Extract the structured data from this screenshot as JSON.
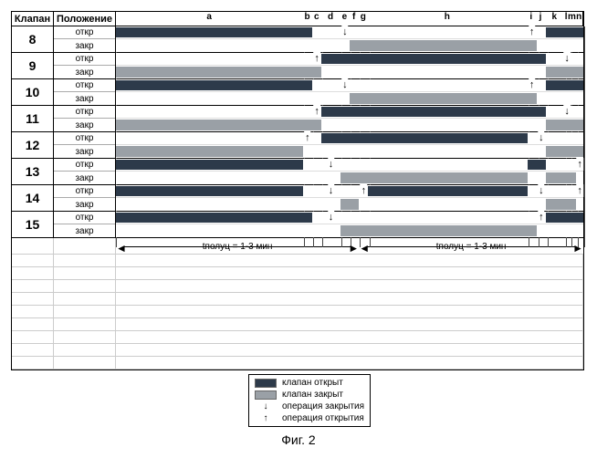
{
  "caption": "Фиг. 2",
  "header": {
    "valve": "Клапан",
    "state": "Положение"
  },
  "state_labels": {
    "open": "откр",
    "closed": "закр"
  },
  "cycle_label": "tполуц = 1-3 мин",
  "legend": {
    "open": "клапан открыт",
    "closed": "клапан закрыт",
    "close_op": "операция закрытия",
    "open_op": "операция открытия"
  },
  "colors": {
    "open": "#2d3a4a",
    "closed": "#9aa0a6",
    "grid": "#444444",
    "border": "#000000",
    "background": "#ffffff"
  },
  "phases": [
    {
      "id": "a",
      "start": 0,
      "end": 0.4
    },
    {
      "id": "b",
      "start": 0.4,
      "end": 0.42
    },
    {
      "id": "c",
      "start": 0.42,
      "end": 0.44
    },
    {
      "id": "d",
      "start": 0.44,
      "end": 0.48
    },
    {
      "id": "e",
      "start": 0.48,
      "end": 0.5
    },
    {
      "id": "f",
      "start": 0.5,
      "end": 0.52
    },
    {
      "id": "g",
      "start": 0.52,
      "end": 0.54
    },
    {
      "id": "h",
      "start": 0.54,
      "end": 0.88
    },
    {
      "id": "i",
      "start": 0.88,
      "end": 0.9
    },
    {
      "id": "j",
      "start": 0.9,
      "end": 0.92
    },
    {
      "id": "k",
      "start": 0.92,
      "end": 0.96
    },
    {
      "id": "l",
      "start": 0.96,
      "end": 0.97
    },
    {
      "id": "m",
      "start": 0.97,
      "end": 0.985
    },
    {
      "id": "n",
      "start": 0.985,
      "end": 1.0
    }
  ],
  "cycles": [
    {
      "start": 0.0,
      "end": 0.52
    },
    {
      "start": 0.52,
      "end": 1.0
    }
  ],
  "valves": [
    {
      "id": "8",
      "open": [
        {
          "s": 0,
          "e": 0.42,
          "t": "open"
        },
        {
          "s": 0.48,
          "e": 0.5,
          "t": "mark",
          "m": "↓"
        },
        {
          "s": 0.88,
          "e": 0.9,
          "t": "mark",
          "m": "↑"
        },
        {
          "s": 0.92,
          "e": 1,
          "t": "open"
        }
      ],
      "closed": [
        {
          "s": 0.5,
          "e": 0.9,
          "t": "closed"
        }
      ]
    },
    {
      "id": "9",
      "open": [
        {
          "s": 0.42,
          "e": 0.44,
          "t": "mark",
          "m": "↑"
        },
        {
          "s": 0.44,
          "e": 0.92,
          "t": "open"
        },
        {
          "s": 0.96,
          "e": 0.97,
          "t": "mark",
          "m": "↓"
        }
      ],
      "closed": [
        {
          "s": 0,
          "e": 0.44,
          "t": "closed"
        },
        {
          "s": 0.92,
          "e": 1,
          "t": "closed"
        }
      ]
    },
    {
      "id": "10",
      "open": [
        {
          "s": 0,
          "e": 0.42,
          "t": "open"
        },
        {
          "s": 0.48,
          "e": 0.5,
          "t": "mark",
          "m": "↓"
        },
        {
          "s": 0.88,
          "e": 0.9,
          "t": "mark",
          "m": "↑"
        },
        {
          "s": 0.92,
          "e": 1,
          "t": "open"
        }
      ],
      "closed": [
        {
          "s": 0.5,
          "e": 0.9,
          "t": "closed"
        }
      ]
    },
    {
      "id": "11",
      "open": [
        {
          "s": 0.42,
          "e": 0.44,
          "t": "mark",
          "m": "↑"
        },
        {
          "s": 0.44,
          "e": 0.92,
          "t": "open"
        },
        {
          "s": 0.96,
          "e": 0.97,
          "t": "mark",
          "m": "↓"
        }
      ],
      "closed": [
        {
          "s": 0,
          "e": 0.44,
          "t": "closed"
        },
        {
          "s": 0.92,
          "e": 1,
          "t": "closed"
        }
      ]
    },
    {
      "id": "12",
      "open": [
        {
          "s": 0.4,
          "e": 0.42,
          "t": "mark",
          "m": "↑"
        },
        {
          "s": 0.44,
          "e": 0.88,
          "t": "open"
        },
        {
          "s": 0.9,
          "e": 0.92,
          "t": "mark",
          "m": "↓"
        }
      ],
      "closed": [
        {
          "s": 0,
          "e": 0.4,
          "t": "closed"
        },
        {
          "s": 0.92,
          "e": 1,
          "t": "closed"
        }
      ]
    },
    {
      "id": "13",
      "open": [
        {
          "s": 0,
          "e": 0.4,
          "t": "open"
        },
        {
          "s": 0.44,
          "e": 0.48,
          "t": "mark",
          "m": "↓"
        },
        {
          "s": 0.88,
          "e": 0.92,
          "t": "open"
        },
        {
          "s": 0.985,
          "e": 1,
          "t": "mark",
          "m": "↑"
        }
      ],
      "closed": [
        {
          "s": 0.48,
          "e": 0.88,
          "t": "closed"
        },
        {
          "s": 0.92,
          "e": 0.985,
          "t": "closed"
        }
      ]
    },
    {
      "id": "14",
      "open": [
        {
          "s": 0,
          "e": 0.4,
          "t": "open"
        },
        {
          "s": 0.44,
          "e": 0.48,
          "t": "mark",
          "m": "↓"
        },
        {
          "s": 0.52,
          "e": 0.54,
          "t": "mark",
          "m": "↑"
        },
        {
          "s": 0.54,
          "e": 0.88,
          "t": "open"
        },
        {
          "s": 0.9,
          "e": 0.92,
          "t": "mark",
          "m": "↓"
        },
        {
          "s": 0.985,
          "e": 1,
          "t": "mark",
          "m": "↑"
        }
      ],
      "closed": [
        {
          "s": 0.48,
          "e": 0.52,
          "t": "closed"
        },
        {
          "s": 0.92,
          "e": 0.985,
          "t": "closed"
        }
      ]
    },
    {
      "id": "15",
      "open": [
        {
          "s": 0,
          "e": 0.42,
          "t": "open"
        },
        {
          "s": 0.44,
          "e": 0.48,
          "t": "mark",
          "m": "↓"
        },
        {
          "s": 0.9,
          "e": 0.92,
          "t": "mark",
          "m": "↑"
        },
        {
          "s": 0.92,
          "e": 1,
          "t": "open"
        }
      ],
      "closed": [
        {
          "s": 0.48,
          "e": 0.9,
          "t": "closed"
        }
      ]
    }
  ]
}
